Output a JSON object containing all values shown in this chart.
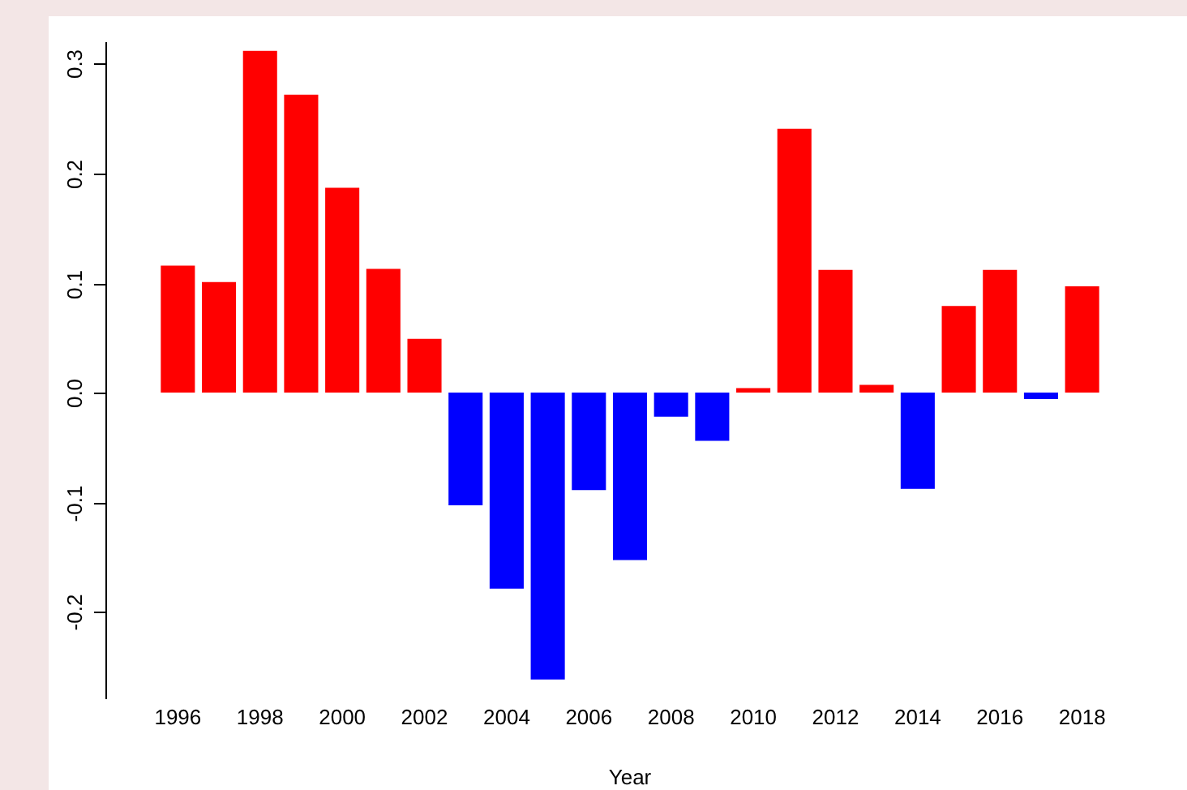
{
  "chart_data": {
    "type": "bar",
    "xlabel": "Year",
    "categories": [
      "1996",
      null,
      "1998",
      null,
      "2000",
      null,
      "2002",
      null,
      "2004",
      null,
      "2006",
      null,
      "2008",
      null,
      "2010",
      null,
      "2012",
      null,
      "2014",
      null,
      "2016",
      null,
      "2018"
    ],
    "values": [
      0.116,
      0.101,
      0.312,
      0.272,
      0.187,
      0.113,
      0.049,
      -0.103,
      -0.179,
      -0.262,
      -0.089,
      -0.153,
      -0.022,
      -0.044,
      0.004,
      0.241,
      0.112,
      0.007,
      -0.088,
      0.079,
      0.112,
      -0.006,
      0.097
    ],
    "colors": [
      "#ff0000",
      "#ff0000",
      "#ff0000",
      "#ff0000",
      "#ff0000",
      "#ff0000",
      "#ff0000",
      "#0000ff",
      "#0000ff",
      "#0000ff",
      "#0000ff",
      "#0000ff",
      "#0000ff",
      "#0000ff",
      "#ff0000",
      "#ff0000",
      "#ff0000",
      "#ff0000",
      "#0000ff",
      "#ff0000",
      "#ff0000",
      "#0000ff",
      "#ff0000"
    ],
    "ylim": [
      -0.28,
      0.32
    ],
    "yticks": [
      {
        "value": -0.2,
        "label": "-0.2"
      },
      {
        "value": -0.1,
        "label": "-0.1"
      },
      {
        "value": 0,
        "label": "0.0"
      },
      {
        "value": 0.1,
        "label": "0.1"
      },
      {
        "value": 0.2,
        "label": "0.2"
      },
      {
        "value": 0.3,
        "label": "0.3"
      }
    ],
    "legend": false
  }
}
